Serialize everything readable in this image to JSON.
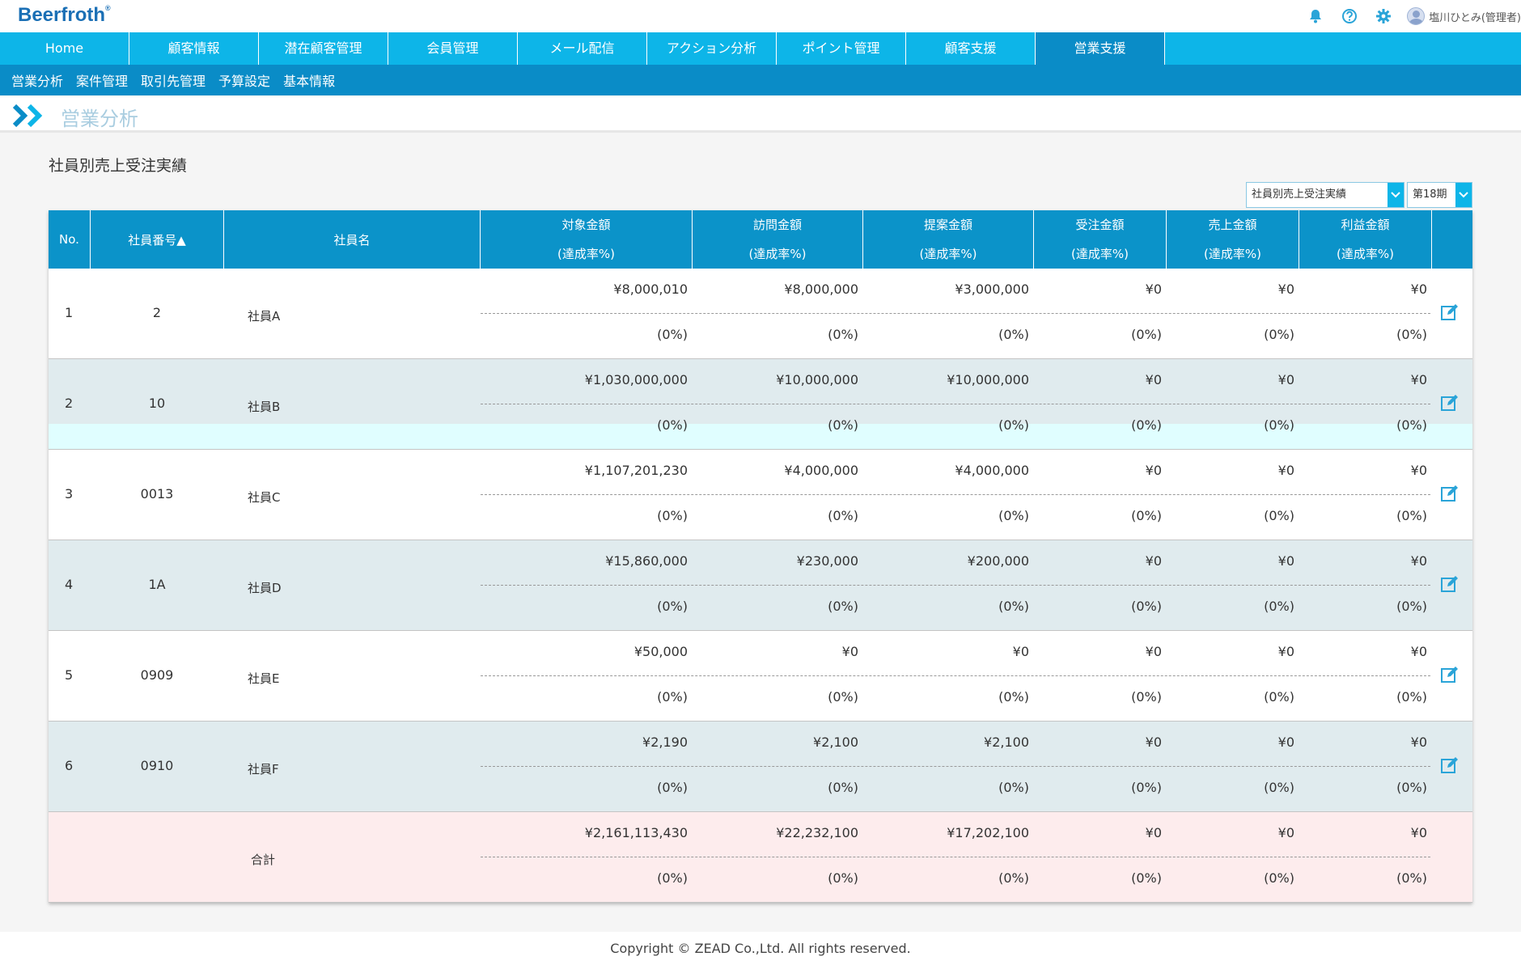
{
  "app": {
    "logo": "Beerfroth",
    "logo_mark": "®"
  },
  "header": {
    "icons": [
      "bell-icon",
      "help-icon",
      "gear-icon"
    ],
    "user_name": "塩川ひとみ(管理者)"
  },
  "main_nav": [
    "Home",
    "顧客情報",
    "潜在顧客管理",
    "会員管理",
    "メール配信",
    "アクション分析",
    "ポイント管理",
    "顧客支援",
    "営業支援"
  ],
  "main_nav_active": 8,
  "sub_nav": [
    "営業分析",
    "案件管理",
    "取引先管理",
    "予算設定",
    "基本情報"
  ],
  "page_title": "営業分析",
  "section_title": "社員別売上受注実績",
  "report_select": {
    "value": "社員別売上受注実績"
  },
  "period_select": {
    "value": "第18期"
  },
  "table": {
    "headers": {
      "no": "No.",
      "emp_num": "社員番号▲",
      "emp_name": "社員名",
      "amount_cols": [
        {
          "label": "対象金額",
          "sub": "(達成率%)"
        },
        {
          "label": "訪問金額",
          "sub": "(達成率%)"
        },
        {
          "label": "提案金額",
          "sub": "(達成率%)"
        },
        {
          "label": "受注金額",
          "sub": "(達成率%)"
        },
        {
          "label": "売上金額",
          "sub": "(達成率%)"
        },
        {
          "label": "利益金額",
          "sub": "(達成率%)"
        }
      ]
    },
    "rows": [
      {
        "no": "1",
        "emp_num": "2",
        "name": "社員A",
        "amounts": [
          "¥8,000,010",
          "¥8,000,000",
          "¥3,000,000",
          "¥0",
          "¥0",
          "¥0"
        ],
        "rates": [
          "(0%)",
          "(0%)",
          "(0%)",
          "(0%)",
          "(0%)",
          "(0%)"
        ]
      },
      {
        "no": "2",
        "emp_num": "10",
        "name": "社員B",
        "amounts": [
          "¥1,030,000,000",
          "¥10,000,000",
          "¥10,000,000",
          "¥0",
          "¥0",
          "¥0"
        ],
        "rates": [
          "(0%)",
          "(0%)",
          "(0%)",
          "(0%)",
          "(0%)",
          "(0%)"
        ]
      },
      {
        "no": "3",
        "emp_num": "0013",
        "name": "社員C",
        "amounts": [
          "¥1,107,201,230",
          "¥4,000,000",
          "¥4,000,000",
          "¥0",
          "¥0",
          "¥0"
        ],
        "rates": [
          "(0%)",
          "(0%)",
          "(0%)",
          "(0%)",
          "(0%)",
          "(0%)"
        ]
      },
      {
        "no": "4",
        "emp_num": "1A",
        "name": "社員D",
        "amounts": [
          "¥15,860,000",
          "¥230,000",
          "¥200,000",
          "¥0",
          "¥0",
          "¥0"
        ],
        "rates": [
          "(0%)",
          "(0%)",
          "(0%)",
          "(0%)",
          "(0%)",
          "(0%)"
        ]
      },
      {
        "no": "5",
        "emp_num": "0909",
        "name": "社員E",
        "amounts": [
          "¥50,000",
          "¥0",
          "¥0",
          "¥0",
          "¥0",
          "¥0"
        ],
        "rates": [
          "(0%)",
          "(0%)",
          "(0%)",
          "(0%)",
          "(0%)",
          "(0%)"
        ]
      },
      {
        "no": "6",
        "emp_num": "0910",
        "name": "社員F",
        "amounts": [
          "¥2,190",
          "¥2,100",
          "¥2,100",
          "¥0",
          "¥0",
          "¥0"
        ],
        "rates": [
          "(0%)",
          "(0%)",
          "(0%)",
          "(0%)",
          "(0%)",
          "(0%)"
        ]
      }
    ],
    "total": {
      "label": "合計",
      "amounts": [
        "¥2,161,113,430",
        "¥22,232,100",
        "¥17,202,100",
        "¥0",
        "¥0",
        "¥0"
      ],
      "rates": [
        "(0%)",
        "(0%)",
        "(0%)",
        "(0%)",
        "(0%)",
        "(0%)"
      ]
    }
  },
  "footer": "Copyright © ZEAD Co.,Ltd. All rights reserved.",
  "colors": {
    "nav": "#0db5e8",
    "nav_active": "#0a8cc7",
    "table_header": "#0b93c9",
    "row_alt": "#e0ebee",
    "row_total": "#fdeced",
    "edit_icon": "#2aa4d8"
  }
}
